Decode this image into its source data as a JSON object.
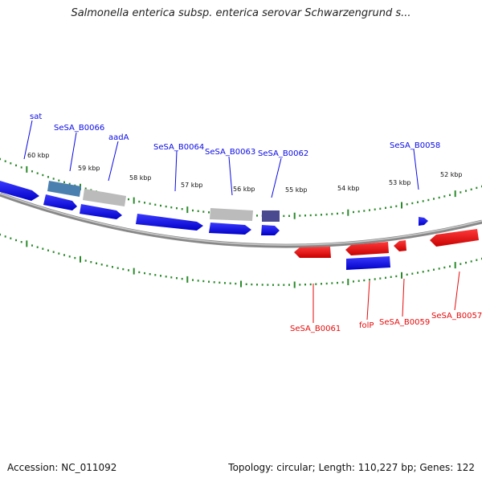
{
  "title": "Salmonella enterica subsp. enterica serovar Schwarzengrund s...",
  "footer": {
    "accession": "Accession: NC_011092",
    "summary": "Topology: circular; Length: 110,227 bp; Genes: 122"
  },
  "colors": {
    "forward": "#0a0ae6",
    "reverse": "#e60a0a",
    "tick": "#2a8a2a",
    "backbone": "#888888",
    "grey_feature": "#bbbbbb",
    "steel_feature": "#4a80b0",
    "navy_feature": "#4a4a90"
  },
  "scale_labels": [
    "60 kbp",
    "59 kbp",
    "58 kbp",
    "57 kbp",
    "56 kbp",
    "55 kbp",
    "54 kbp",
    "53 kbp",
    "52 kbp"
  ],
  "forward_gene_labels": [
    "sat",
    "SeSA_B0066",
    "aadA",
    "SeSA_B0064",
    "SeSA_B0063",
    "SeSA_B0062",
    "SeSA_B0058"
  ],
  "reverse_gene_labels": [
    "SeSA_B0061",
    "folP",
    "SeSA_B0059",
    "SeSA_B0057"
  ]
}
